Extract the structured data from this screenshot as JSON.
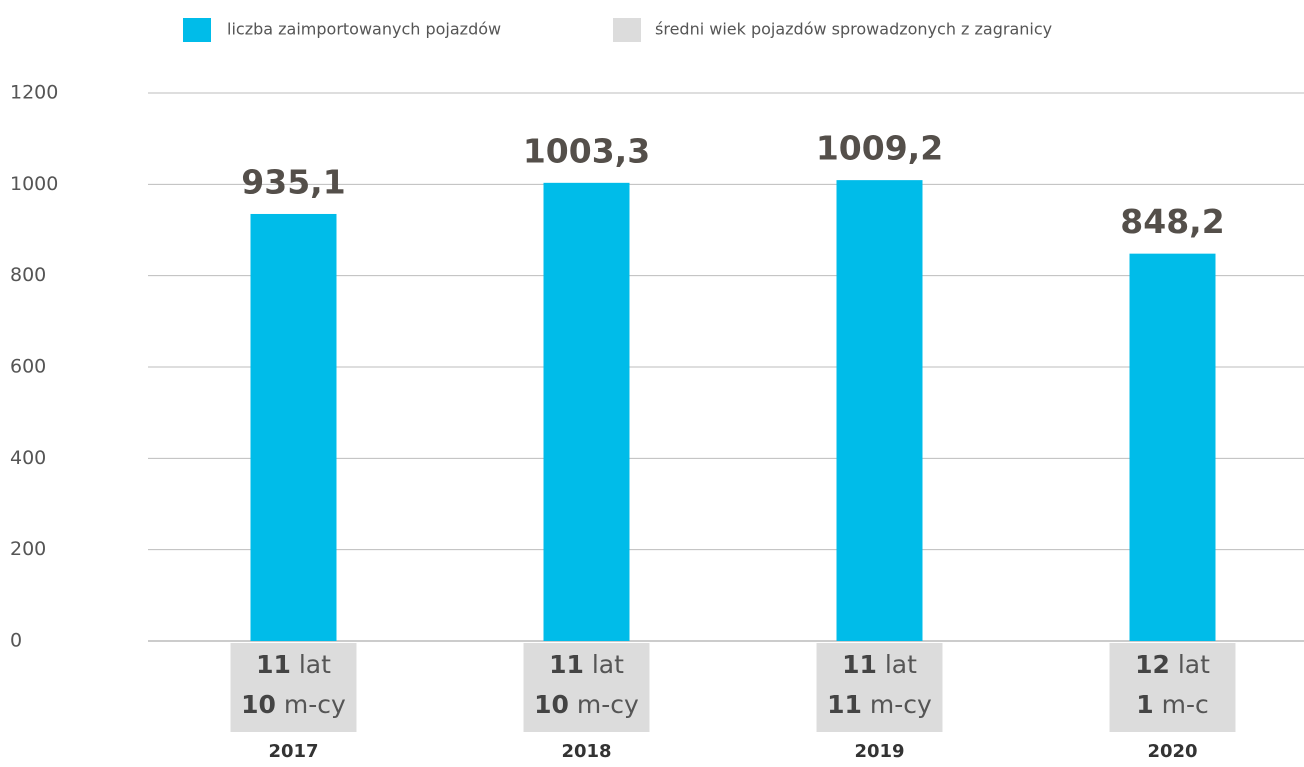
{
  "chart_data": {
    "type": "bar",
    "categories": [
      2017,
      2018,
      2019,
      2020
    ],
    "series": [
      {
        "name": "liczba zaimportowanych pojazdów",
        "color": "#00bce9",
        "values": [
          935.1,
          1003.3,
          1009.2,
          848.2
        ],
        "value_labels": [
          "935,1",
          "1003,3",
          "1009,2",
          "848,2"
        ]
      },
      {
        "name": "średni wiek pojazdów sprowadzonych z zagranicy",
        "color": "#dcdcdc",
        "years": [
          11,
          11,
          11,
          12
        ],
        "years_units": [
          "lat",
          "lat",
          "lat",
          "lat"
        ],
        "months": [
          10,
          10,
          11,
          1
        ],
        "months_units": [
          "m-cy",
          "m-cy",
          "m-cy",
          "m-c"
        ]
      }
    ],
    "ylim": [
      0,
      1200
    ],
    "yticks": [
      0,
      200,
      400,
      600,
      800,
      1000,
      1200
    ],
    "grid": true
  }
}
